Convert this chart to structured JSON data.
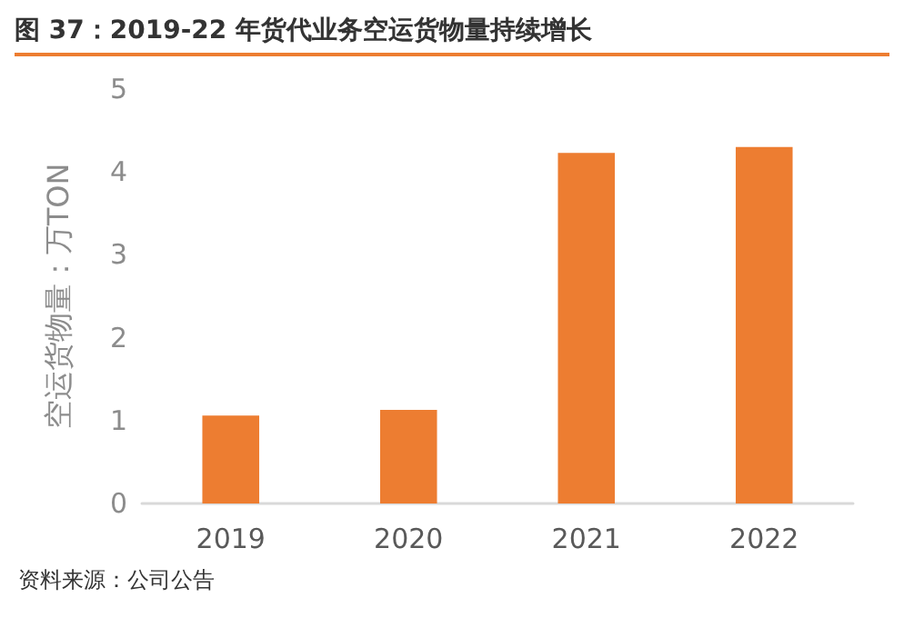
{
  "chart_data": {
    "type": "bar",
    "title": "图 37：2019-22 年货代业务空运货物量持续增长",
    "categories": [
      "2019",
      "2020",
      "2021",
      "2022"
    ],
    "values": [
      1.06,
      1.13,
      4.23,
      4.3
    ],
    "color": "#ed7d31",
    "ylabel": "空运货物量：万TON",
    "ylim": [
      0,
      5
    ],
    "yticks": [
      0,
      1,
      2,
      3,
      4,
      5
    ],
    "grid": false,
    "annotations": [
      "资料来源：公司公告"
    ]
  }
}
